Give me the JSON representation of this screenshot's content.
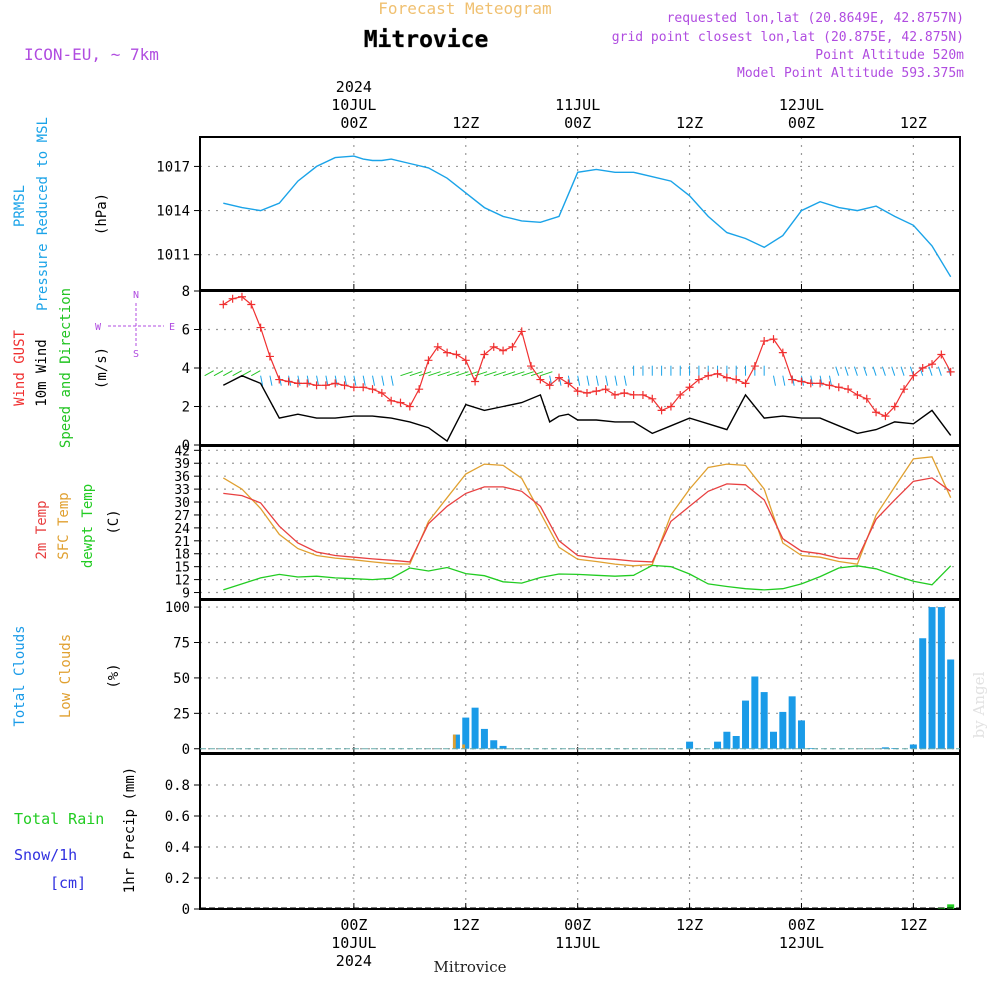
{
  "header": {
    "title": "Forecast Meteogram",
    "location": "Mitrovice",
    "model": "ICON-EU, ~ 7km",
    "requested": "requested lon,lat (20.8649E, 42.8757N)",
    "grid_point": "grid point closest lon,lat (20.875E, 42.875N)",
    "point_altitude": "Point Altitude 520m",
    "model_altitude": "Model Point Altitude 593.375m",
    "footer_location": "Mitrovice",
    "watermark": "by Angel"
  },
  "time_axis": {
    "top": [
      {
        "hour": 0,
        "lines": [
          "2024",
          "10JUL",
          "00Z"
        ]
      },
      {
        "hour": 12,
        "lines": [
          "12Z"
        ]
      },
      {
        "hour": 24,
        "lines": [
          "11JUL",
          "00Z"
        ]
      },
      {
        "hour": 36,
        "lines": [
          "12Z"
        ]
      },
      {
        "hour": 48,
        "lines": [
          "12JUL",
          "00Z"
        ]
      },
      {
        "hour": 60,
        "lines": [
          "12Z"
        ]
      }
    ],
    "bottom": [
      {
        "hour": 0,
        "lines": [
          "00Z",
          "10JUL",
          "2024"
        ]
      },
      {
        "hour": 12,
        "lines": [
          "12Z"
        ]
      },
      {
        "hour": 24,
        "lines": [
          "00Z",
          "11JUL"
        ]
      },
      {
        "hour": 36,
        "lines": [
          "12Z"
        ]
      },
      {
        "hour": 48,
        "lines": [
          "00Z",
          "12JUL"
        ]
      },
      {
        "hour": 60,
        "lines": [
          "12Z"
        ]
      }
    ]
  },
  "colors": {
    "title": "#f0c070",
    "purple": "#b04ce0",
    "pressure": "#1aa3e8",
    "gust": "#f03030",
    "wind": "#000000",
    "arrow_green": "#22c422",
    "temp": "#e84040",
    "sfc": "#e0a030",
    "dewpt": "#22cc22",
    "clouds_total": "#1a9be8",
    "clouds_low": "#e0a030",
    "rain": "#22cc22",
    "snow": "#3030e0"
  },
  "panel_labels": {
    "pressure": {
      "lines": [
        "PRMSL",
        "Pressure Reduced to MSL"
      ],
      "unit": "(hPa)"
    },
    "wind": {
      "lines": [
        "Wind GUST",
        "10m Wind",
        "Speed and Direction"
      ],
      "unit": "(m/s)",
      "compass": {
        "n": "N",
        "s": "S",
        "e": "E",
        "w": "W"
      }
    },
    "temp": {
      "lines": [
        "2m Temp",
        "SFC Temp",
        "dewpt Temp"
      ],
      "unit": "(C)"
    },
    "clouds": {
      "lines": [
        "Total Clouds",
        "Low Clouds"
      ],
      "unit": "(%)"
    },
    "precip": {
      "lines": [
        "Total  Rain",
        "Snow/1h",
        "[cm]"
      ],
      "unit": "1hr Precip (mm)"
    }
  },
  "chart_data": [
    {
      "type": "line",
      "panel": "pressure",
      "ylabel": "(hPa)",
      "ylim": [
        1008.6,
        1019
      ],
      "yticks": [
        1011,
        1014,
        1017
      ],
      "series": [
        {
          "name": "PRMSL",
          "x": [
            -14,
            -12,
            -10,
            -8,
            -6,
            -4,
            -2,
            0,
            1,
            2,
            3,
            4,
            6,
            8,
            10,
            12,
            14,
            16,
            18,
            20,
            22,
            24,
            26,
            28,
            30,
            32,
            34,
            36,
            38,
            40,
            42,
            44,
            46,
            48,
            50,
            52,
            54,
            56,
            58,
            60,
            62,
            64
          ],
          "values": [
            1014.5,
            1014.2,
            1014.0,
            1014.5,
            1016.0,
            1017.0,
            1017.6,
            1017.7,
            1017.5,
            1017.4,
            1017.4,
            1017.5,
            1017.2,
            1016.9,
            1016.2,
            1015.2,
            1014.2,
            1013.6,
            1013.3,
            1013.2,
            1013.6,
            1016.6,
            1016.8,
            1016.6,
            1016.6,
            1016.3,
            1016.0,
            1015.0,
            1013.6,
            1012.5,
            1012.1,
            1011.5,
            1012.3,
            1014.0,
            1014.6,
            1014.2,
            1014.0,
            1014.3,
            1013.6,
            1013.0,
            1011.6,
            1009.5
          ]
        }
      ]
    },
    {
      "type": "line",
      "panel": "wind",
      "ylabel": "(m/s)",
      "ylim": [
        0,
        8
      ],
      "yticks": [
        0,
        2,
        4,
        6,
        8
      ],
      "series": [
        {
          "name": "Wind GUST",
          "x": [
            -14,
            -13,
            -12,
            -11,
            -10,
            -9,
            -8,
            -7,
            -6,
            -5,
            -4,
            -3,
            -2,
            -1,
            0,
            1,
            2,
            3,
            4,
            5,
            6,
            7,
            8,
            9,
            10,
            11,
            12,
            13,
            14,
            15,
            16,
            17,
            18,
            19,
            20,
            21,
            22,
            23,
            24,
            25,
            26,
            27,
            28,
            29,
            30,
            31,
            32,
            33,
            34,
            35,
            36,
            37,
            38,
            39,
            40,
            41,
            42,
            43,
            44,
            45,
            46,
            47,
            48,
            49,
            50,
            51,
            52,
            53,
            54,
            55,
            56,
            57,
            58,
            59,
            60,
            61,
            62,
            63,
            64
          ],
          "values": [
            7.3,
            7.6,
            7.7,
            7.3,
            6.1,
            4.6,
            3.4,
            3.3,
            3.2,
            3.2,
            3.1,
            3.1,
            3.2,
            3.1,
            3.0,
            3.0,
            2.9,
            2.7,
            2.3,
            2.2,
            2.0,
            2.9,
            4.4,
            5.1,
            4.8,
            4.7,
            4.4,
            3.3,
            4.7,
            5.1,
            4.9,
            5.1,
            5.9,
            4.1,
            3.4,
            3.1,
            3.5,
            3.2,
            2.8,
            2.7,
            2.8,
            2.9,
            2.6,
            2.7,
            2.6,
            2.6,
            2.4,
            1.8,
            2.0,
            2.6,
            3.0,
            3.4,
            3.6,
            3.7,
            3.5,
            3.4,
            3.2,
            4.1,
            5.4,
            5.5,
            4.8,
            3.4,
            3.3,
            3.2,
            3.2,
            3.1,
            3.0,
            2.9,
            2.6,
            2.4,
            1.7,
            1.5,
            2.0,
            2.9,
            3.6,
            4.0,
            4.2,
            4.7,
            3.8
          ]
        },
        {
          "name": "10m Wind",
          "x": [
            -14,
            -12,
            -10,
            -8,
            -6,
            -4,
            -2,
            0,
            2,
            4,
            6,
            8,
            10,
            12,
            14,
            16,
            18,
            20,
            21,
            22,
            23,
            24,
            26,
            28,
            30,
            32,
            34,
            36,
            38,
            40,
            42,
            44,
            46,
            48,
            50,
            52,
            54,
            56,
            58,
            60,
            62,
            64
          ],
          "values": [
            3.1,
            3.6,
            3.2,
            1.4,
            1.6,
            1.4,
            1.4,
            1.5,
            1.5,
            1.4,
            1.2,
            0.9,
            0.2,
            2.1,
            1.8,
            2.0,
            2.2,
            2.6,
            1.2,
            1.5,
            1.6,
            1.3,
            1.3,
            1.2,
            1.2,
            0.6,
            1.0,
            1.4,
            1.1,
            0.8,
            2.6,
            1.4,
            1.5,
            1.4,
            1.4,
            1.0,
            0.6,
            0.8,
            1.2,
            1.1,
            1.8,
            0.5
          ]
        }
      ]
    },
    {
      "type": "line",
      "panel": "temperature",
      "ylabel": "(C)",
      "ylim": [
        7.5,
        43
      ],
      "yticks": [
        9,
        12,
        15,
        18,
        21,
        24,
        27,
        30,
        33,
        36,
        39,
        42
      ],
      "series": [
        {
          "name": "2m Temp",
          "x": [
            -14,
            -12,
            -10,
            -8,
            -6,
            -4,
            -2,
            0,
            2,
            4,
            6,
            8,
            10,
            12,
            14,
            16,
            18,
            20,
            22,
            24,
            26,
            28,
            30,
            32,
            34,
            36,
            38,
            40,
            42,
            44,
            46,
            48,
            50,
            52,
            54,
            56,
            58,
            60,
            62,
            64
          ],
          "values": [
            32.0,
            31.5,
            29.8,
            24.4,
            20.5,
            18.4,
            17.6,
            17.2,
            16.8,
            16.5,
            16.1,
            25.0,
            29.0,
            32.0,
            33.5,
            33.5,
            32.5,
            29.0,
            21.0,
            17.6,
            17.0,
            16.7,
            16.3,
            16.1,
            25.5,
            29.0,
            32.5,
            34.2,
            34.0,
            30.5,
            21.5,
            18.6,
            18.0,
            17.0,
            16.8,
            26.0,
            30.5,
            34.8,
            35.6,
            32.5
          ]
        },
        {
          "name": "SFC Temp",
          "x": [
            -14,
            -12,
            -10,
            -8,
            -6,
            -4,
            -2,
            0,
            2,
            4,
            6,
            8,
            10,
            12,
            14,
            16,
            18,
            20,
            22,
            24,
            26,
            28,
            30,
            32,
            34,
            36,
            38,
            40,
            42,
            44,
            46,
            48,
            50,
            52,
            54,
            56,
            58,
            60,
            62,
            64
          ],
          "values": [
            35.6,
            33.0,
            28.5,
            22.5,
            19.2,
            17.6,
            17.0,
            16.6,
            16.1,
            15.7,
            15.6,
            25.5,
            31.0,
            36.5,
            38.8,
            38.5,
            35.5,
            27.5,
            19.5,
            16.7,
            16.2,
            15.6,
            15.2,
            15.5,
            27.0,
            33.0,
            38.0,
            38.8,
            38.5,
            33.0,
            20.5,
            17.6,
            17.2,
            16.2,
            15.6,
            27.0,
            33.5,
            40.0,
            40.5,
            31.0
          ]
        },
        {
          "name": "dewpt Temp",
          "x": [
            -14,
            -12,
            -10,
            -8,
            -6,
            -4,
            -2,
            0,
            2,
            4,
            6,
            8,
            10,
            12,
            14,
            16,
            18,
            20,
            22,
            24,
            26,
            28,
            30,
            32,
            34,
            36,
            38,
            40,
            42,
            44,
            46,
            48,
            50,
            52,
            54,
            56,
            58,
            60,
            62,
            64
          ],
          "values": [
            9.6,
            11.0,
            12.4,
            13.2,
            12.6,
            12.8,
            12.4,
            12.2,
            12.0,
            12.3,
            14.7,
            14.0,
            14.8,
            13.4,
            12.9,
            11.5,
            11.2,
            12.5,
            13.3,
            13.2,
            13.0,
            12.8,
            13.0,
            15.3,
            15.0,
            13.3,
            11.0,
            10.4,
            9.9,
            9.6,
            9.9,
            11.0,
            12.7,
            14.7,
            15.2,
            14.5,
            13.0,
            11.6,
            10.8,
            15.2
          ]
        }
      ]
    },
    {
      "type": "bar",
      "panel": "clouds",
      "ylabel": "(%)",
      "ylim": [
        -3,
        105
      ],
      "yticks": [
        0,
        25,
        50,
        75,
        100
      ],
      "series": [
        {
          "name": "Total Clouds",
          "x": [
            11,
            12,
            13,
            14,
            15,
            16,
            36,
            39,
            40,
            41,
            42,
            43,
            44,
            45,
            46,
            47,
            48,
            49,
            57,
            58,
            60,
            61,
            62,
            63,
            64
          ],
          "values": [
            10,
            22,
            29,
            14,
            6,
            2,
            5,
            5,
            12,
            9,
            34,
            51,
            40,
            12,
            26,
            37,
            20,
            0.5,
            1,
            0.5,
            3,
            78,
            100,
            100,
            63
          ]
        },
        {
          "name": "Low Clouds",
          "x": [
            11,
            12
          ],
          "values": [
            10,
            3
          ]
        }
      ]
    },
    {
      "type": "bar",
      "panel": "precip",
      "ylabel": "1hr Precip (mm)",
      "ylim": [
        0,
        1.0
      ],
      "yticks": [
        0,
        0.2,
        0.4,
        0.6,
        0.8
      ],
      "series": [
        {
          "name": "Total Rain",
          "x": [
            63,
            64
          ],
          "values": [
            0.01,
            0.03
          ]
        }
      ]
    }
  ]
}
